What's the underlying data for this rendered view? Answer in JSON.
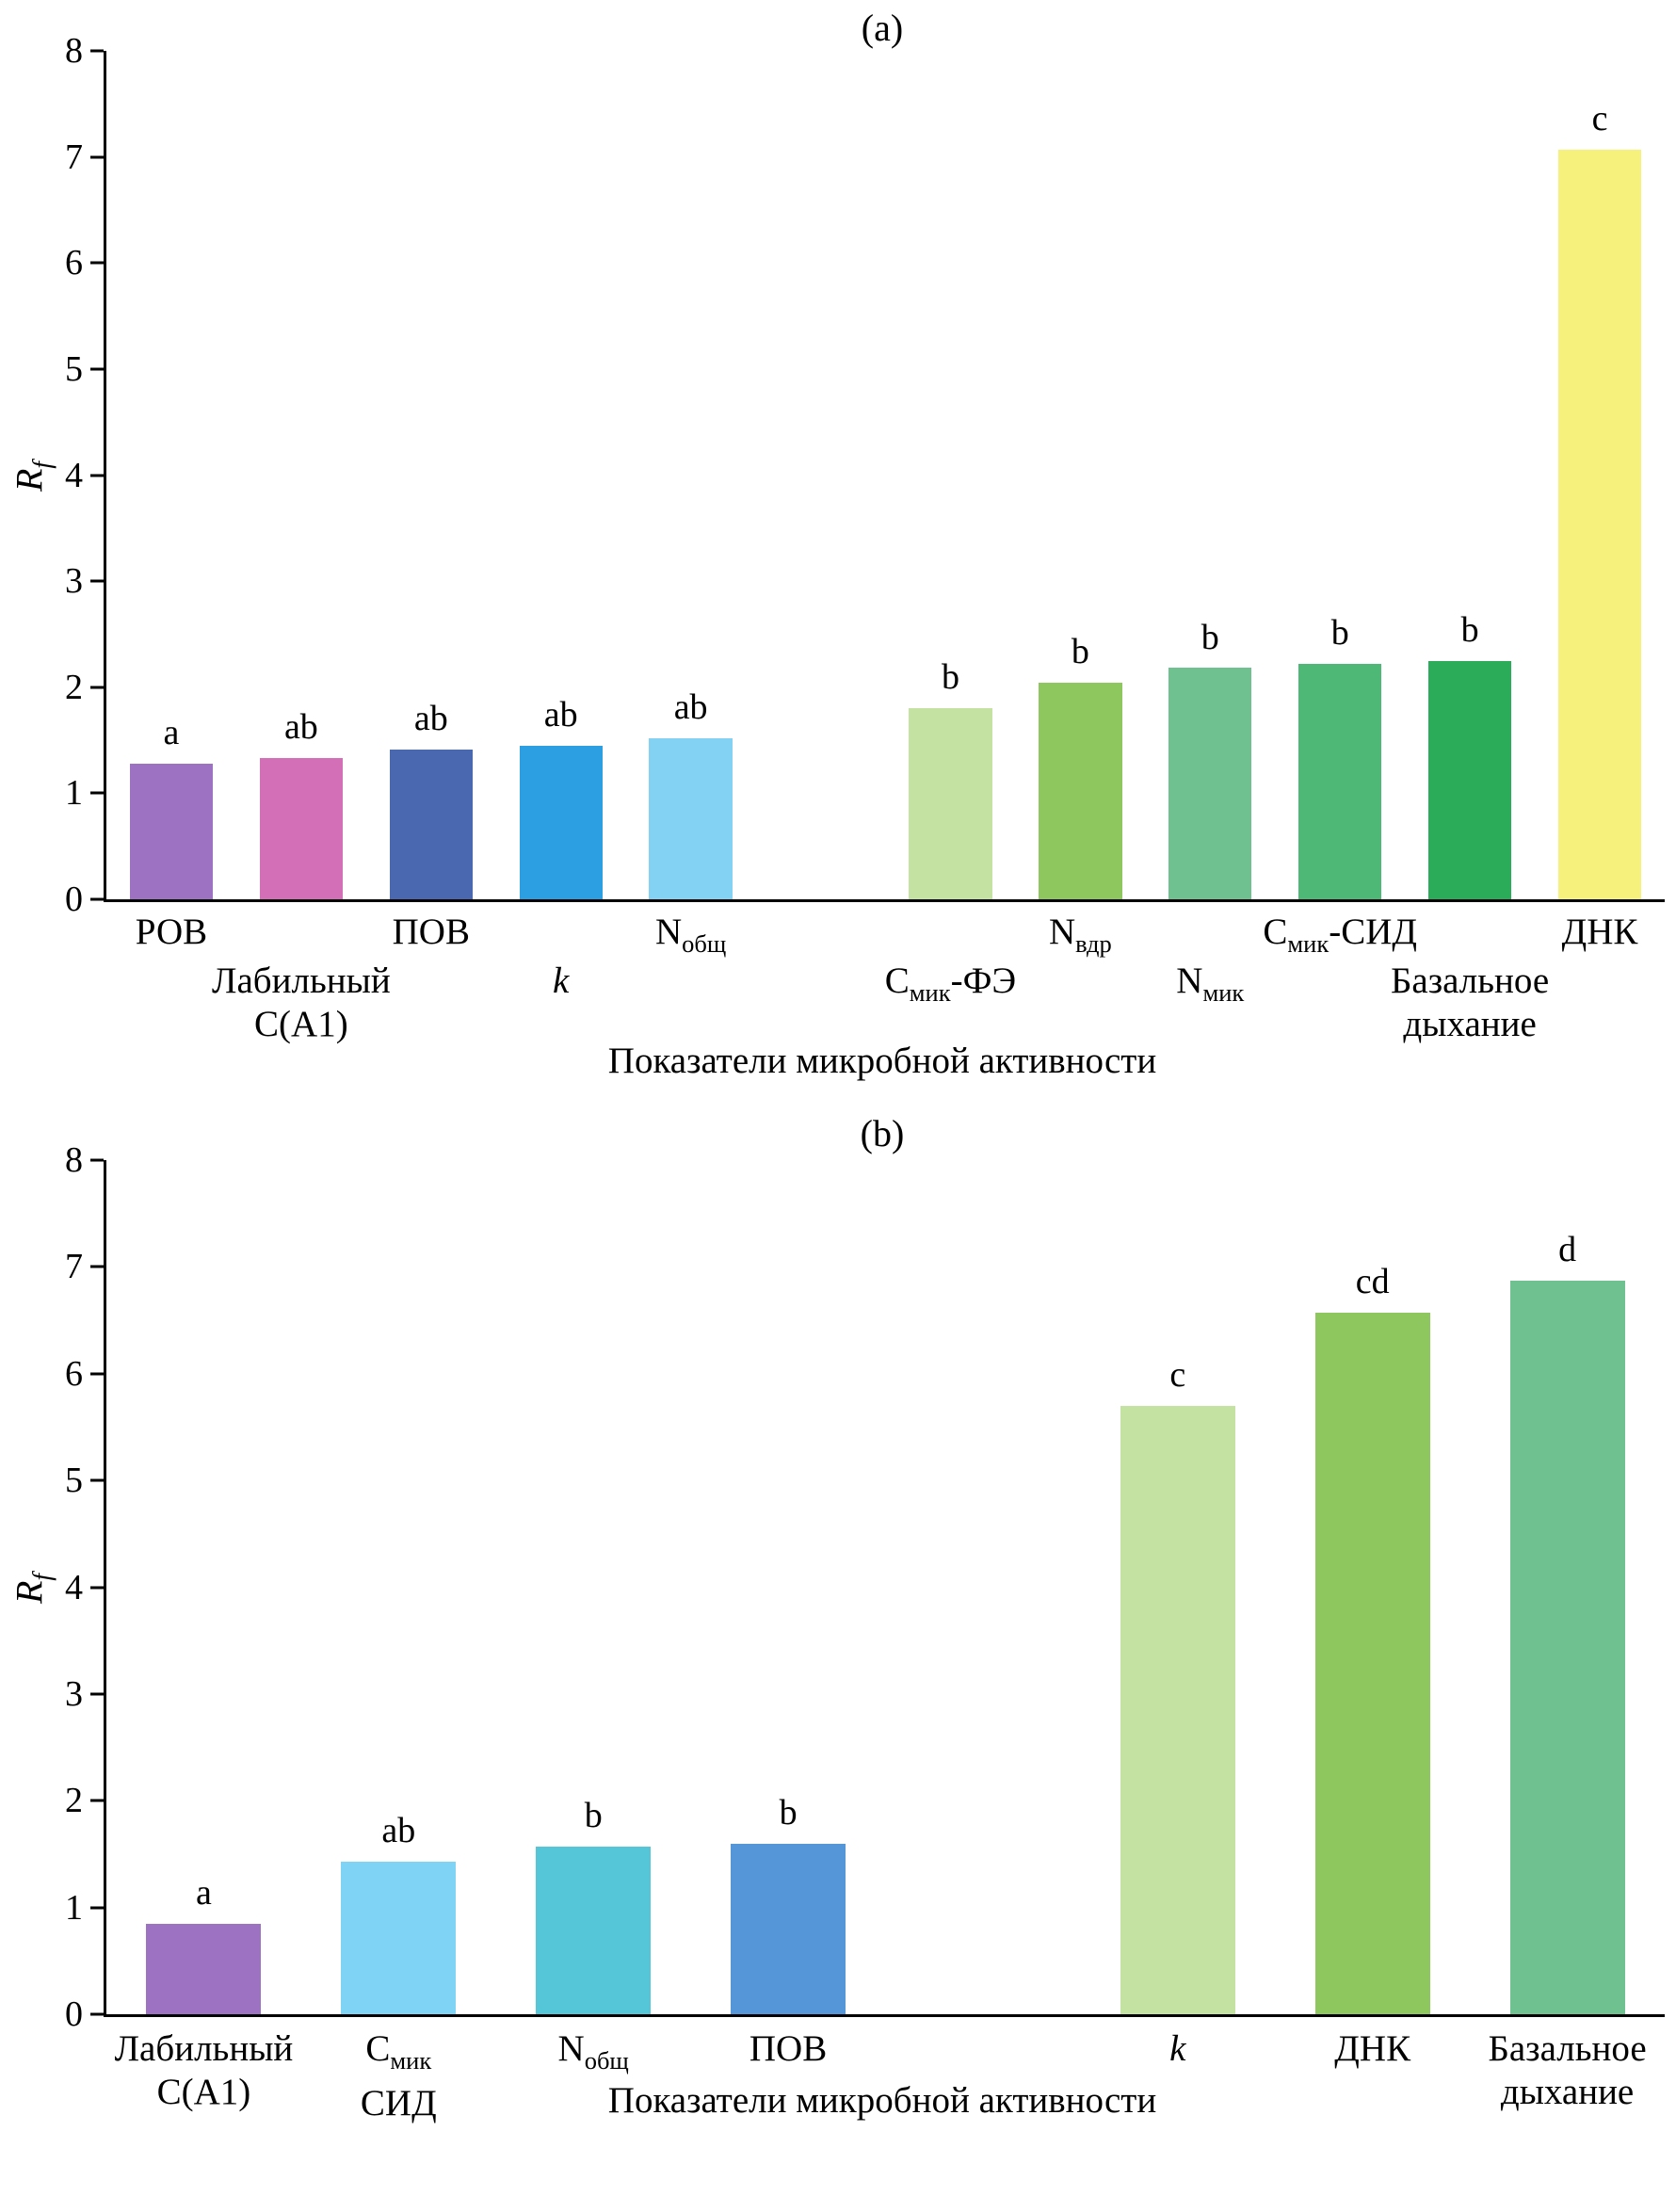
{
  "figure": {
    "background": "#ffffff",
    "text_color": "#000000"
  },
  "chart_data": [
    {
      "type": "bar",
      "title": "(a)",
      "xlabel": "Показатели микробной активности",
      "ylabel": "Rf",
      "ylabel_parts": {
        "main": "R",
        "sub": "f"
      },
      "ylim": [
        0,
        8
      ],
      "yticks": [
        0,
        1,
        2,
        3,
        4,
        5,
        6,
        7,
        8
      ],
      "grid": false,
      "legend": false,
      "slots": 12,
      "bar_width_ratio": 0.64,
      "bars": [
        {
          "id": "rov",
          "slot": 1,
          "value": 1.28,
          "letter": "a",
          "color": "#9e72c3",
          "label_row": 0,
          "label": [
            [
              {
                "t": "РОВ"
              }
            ]
          ]
        },
        {
          "id": "labile-c-a1",
          "slot": 2,
          "value": 1.33,
          "letter": "ab",
          "color": "#d36fb6",
          "label_row": 1,
          "label": [
            [
              {
                "t": "Лабильный"
              }
            ],
            [
              {
                "t": "С(А1)"
              }
            ]
          ]
        },
        {
          "id": "pov",
          "slot": 3,
          "value": 1.41,
          "letter": "ab",
          "color": "#4a68b0",
          "label_row": 0,
          "label": [
            [
              {
                "t": "ПОВ"
              }
            ]
          ]
        },
        {
          "id": "k",
          "slot": 4,
          "value": 1.45,
          "letter": "ab",
          "color": "#2b9fe2",
          "label_row": 1,
          "label": [
            [
              {
                "t": "k",
                "italic": true
              }
            ]
          ]
        },
        {
          "id": "n-total",
          "slot": 5,
          "value": 1.52,
          "letter": "ab",
          "color": "#83d2f4",
          "label_row": 0,
          "label": [
            [
              {
                "t": "N"
              },
              {
                "t": "общ",
                "sub": true
              }
            ]
          ]
        },
        {
          "id": "c-mic-fe",
          "slot": 7,
          "value": 1.8,
          "letter": "b",
          "color": "#c4e3a2",
          "label_row": 1,
          "label": [
            [
              {
                "t": "С"
              },
              {
                "t": "мик",
                "sub": true
              },
              {
                "t": "-ФЭ"
              }
            ]
          ]
        },
        {
          "id": "n-vdr",
          "slot": 8,
          "value": 2.04,
          "letter": "b",
          "color": "#8dc75e",
          "label_row": 0,
          "label": [
            [
              {
                "t": "N"
              },
              {
                "t": "вдр",
                "sub": true
              }
            ]
          ]
        },
        {
          "id": "n-mic",
          "slot": 9,
          "value": 2.18,
          "letter": "b",
          "color": "#70c190",
          "label_row": 1,
          "label": [
            [
              {
                "t": "N"
              },
              {
                "t": "мик",
                "sub": true
              }
            ]
          ]
        },
        {
          "id": "c-mic-sid",
          "slot": 10,
          "value": 2.22,
          "letter": "b",
          "color": "#4eb876",
          "label_row": 0,
          "label": [
            [
              {
                "t": "С"
              },
              {
                "t": "мик",
                "sub": true
              },
              {
                "t": "-СИД"
              }
            ]
          ]
        },
        {
          "id": "basal-respiration",
          "slot": 11,
          "value": 2.25,
          "letter": "b",
          "color": "#2aac59",
          "label_row": 1,
          "label": [
            [
              {
                "t": "Базальное"
              }
            ],
            [
              {
                "t": "дыхание"
              }
            ]
          ]
        },
        {
          "id": "dna",
          "slot": 12,
          "value": 7.07,
          "letter": "c",
          "color": "#f6f07c",
          "label_row": 0,
          "label": [
            [
              {
                "t": "ДНК"
              }
            ]
          ]
        }
      ]
    },
    {
      "type": "bar",
      "title": "(b)",
      "xlabel": "Показатели микробной активности",
      "ylabel": "Rf",
      "ylabel_parts": {
        "main": "R",
        "sub": "f"
      },
      "ylim": [
        0,
        8
      ],
      "yticks": [
        0,
        1,
        2,
        3,
        4,
        5,
        6,
        7,
        8
      ],
      "grid": false,
      "legend": false,
      "slots": 8,
      "bar_width_ratio": 0.59,
      "bars": [
        {
          "id": "labile-c-a1",
          "slot": 1,
          "value": 0.85,
          "letter": "a",
          "color": "#9e72c3",
          "label_row": 0,
          "label": [
            [
              {
                "t": "Лабильный"
              }
            ],
            [
              {
                "t": "С(А1)"
              }
            ]
          ]
        },
        {
          "id": "c-mic-sid",
          "slot": 2,
          "value": 1.43,
          "letter": "ab",
          "color": "#7fd4f6",
          "label_row": 0,
          "label": [
            [
              {
                "t": "С"
              },
              {
                "t": "мик",
                "sub": true
              }
            ],
            [
              {
                "t": "СИД"
              }
            ]
          ]
        },
        {
          "id": "n-total",
          "slot": 3,
          "value": 1.57,
          "letter": "b",
          "color": "#54c6d8",
          "label_row": 0,
          "label": [
            [
              {
                "t": "N"
              },
              {
                "t": "общ",
                "sub": true
              }
            ]
          ]
        },
        {
          "id": "pov",
          "slot": 4,
          "value": 1.6,
          "letter": "b",
          "color": "#5596d8",
          "label_row": 0,
          "label": [
            [
              {
                "t": "ПОВ"
              }
            ]
          ]
        },
        {
          "id": "k",
          "slot": 6,
          "value": 5.7,
          "letter": "c",
          "color": "#c4e3a2",
          "label_row": 0,
          "label": [
            [
              {
                "t": "k",
                "italic": true
              }
            ]
          ]
        },
        {
          "id": "dna",
          "slot": 7,
          "value": 6.57,
          "letter": "cd",
          "color": "#8dc75e",
          "label_row": 0,
          "label": [
            [
              {
                "t": "ДНК"
              }
            ]
          ]
        },
        {
          "id": "basal-respiration",
          "slot": 8,
          "value": 6.87,
          "letter": "d",
          "color": "#70c190",
          "label_row": 0,
          "label": [
            [
              {
                "t": "Базальное"
              }
            ],
            [
              {
                "t": "дыхание"
              }
            ]
          ]
        }
      ]
    }
  ]
}
